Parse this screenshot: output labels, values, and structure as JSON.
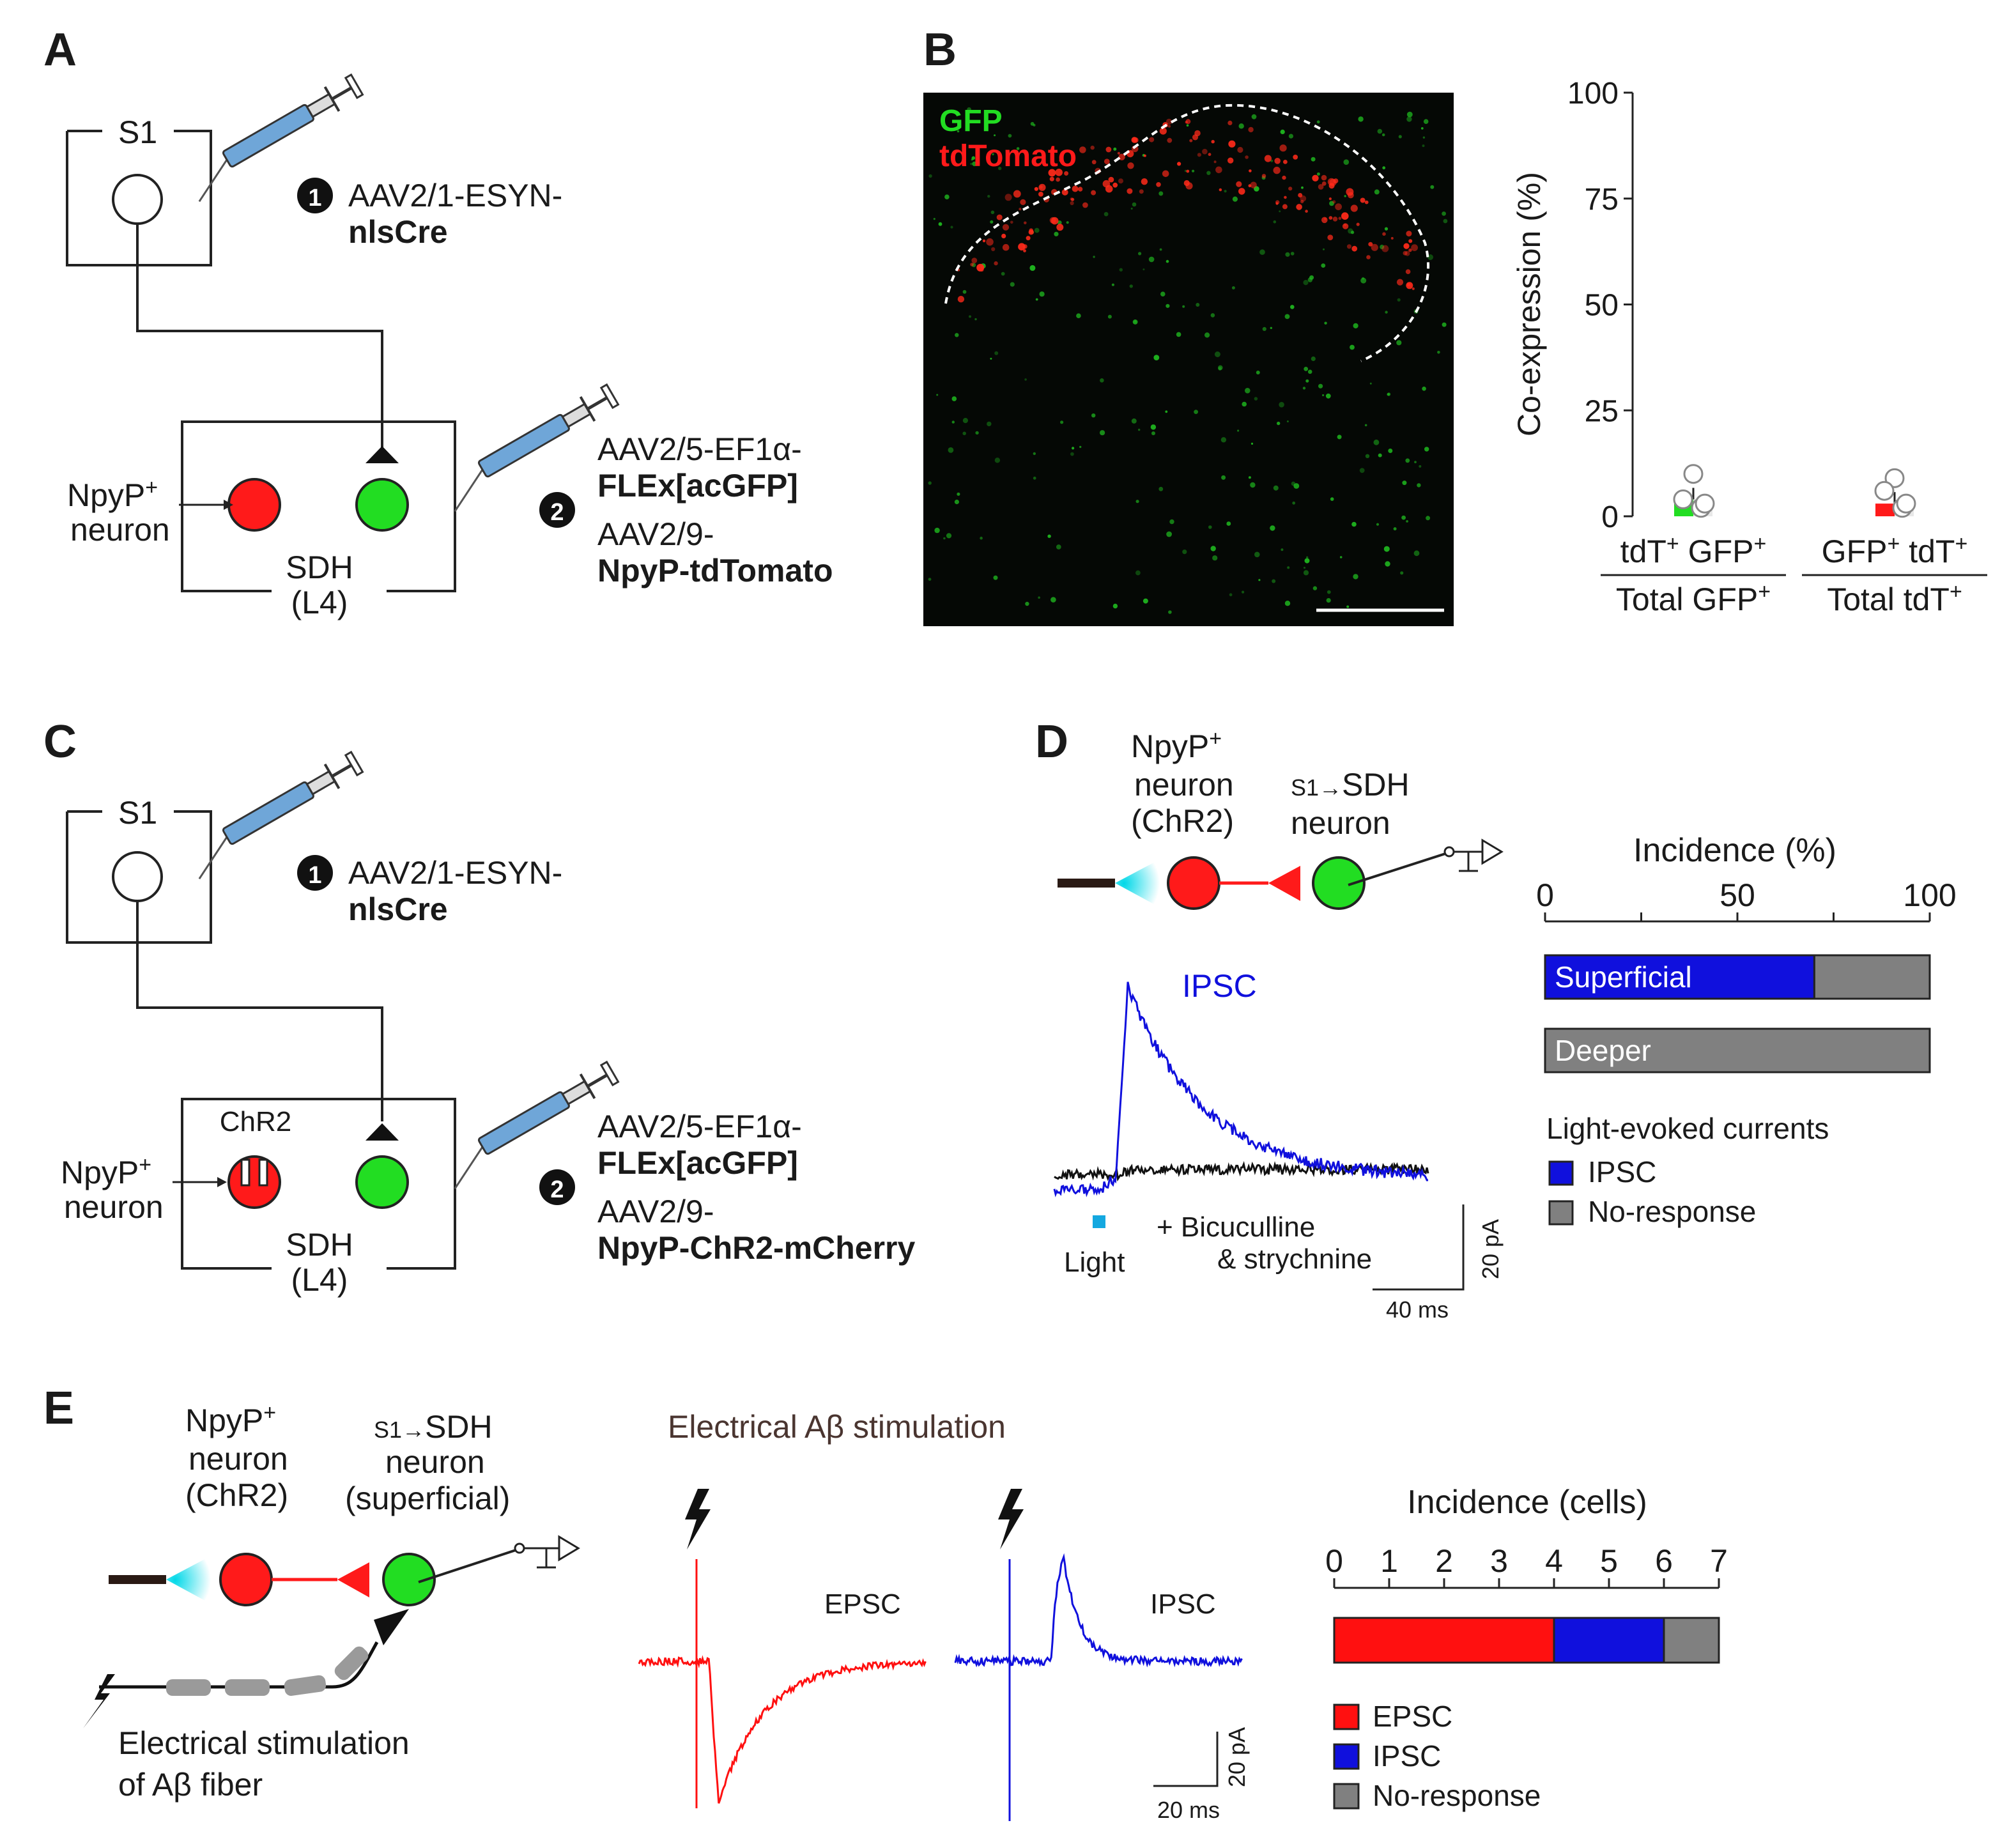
{
  "panels": {
    "A": {
      "letter": "A",
      "s1_label": "S1",
      "step1": "1",
      "step2": "2",
      "virus1_line1": "AAV2/1-ESYN-",
      "virus1_line2": "nlsCre",
      "virus2_line1": "AAV2/5-EF1α-",
      "virus2_line2": "FLEx[acGFP]",
      "virus3_line1": "AAV2/9-",
      "virus3_line2": "NpyP-tdTomato",
      "npyp_label": "NpyP",
      "npyp_sup": "+",
      "neuron_label": "neuron",
      "region_line1": "SDH",
      "region_line2": "(L4)"
    },
    "B": {
      "letter": "B",
      "image_legend_gfp": "GFP",
      "image_legend_tdt": "tdTomato",
      "colors": {
        "gfp": "#22dd22",
        "tdt": "#ff1a1a"
      },
      "chart_data": {
        "type": "scatter",
        "ylabel": "Co-expression (%)",
        "ylim": [
          0,
          100
        ],
        "yticks": [
          "0",
          "25",
          "50",
          "75",
          "100"
        ],
        "categories": [
          {
            "num_a": "tdT",
            "num_sup_a": "+",
            "num_b": " GFP",
            "num_sup_b": "+",
            "den": "Total GFP",
            "den_sup": "+"
          },
          {
            "num_a": "GFP",
            "num_sup_a": "+",
            "num_b": " tdT",
            "num_sup_b": "+",
            "den": "Total tdT",
            "den_sup": "+"
          }
        ],
        "series": [
          {
            "mean": 4,
            "points": [
              10,
              4,
              2,
              3
            ]
          },
          {
            "mean": 3,
            "points": [
              9,
              6,
              2,
              3
            ]
          }
        ]
      }
    },
    "C": {
      "letter": "C",
      "s1_label": "S1",
      "step1": "1",
      "step2": "2",
      "virus1_line1": "AAV2/1-ESYN-",
      "virus1_line2": "nlsCre",
      "virus2_line1": "AAV2/5-EF1α-",
      "virus2_line2": "FLEx[acGFP]",
      "virus3_line1": "AAV2/9-",
      "virus3_line2": "NpyP-ChR2-mCherry",
      "chr2_label": "ChR2",
      "npyp_label": "NpyP",
      "npyp_sup": "+",
      "neuron_label": "neuron",
      "region_line1": "SDH",
      "region_line2": "(L4)"
    },
    "D": {
      "letter": "D",
      "pre_line1": "NpyP",
      "pre_sup": "+",
      "pre_line2": "neuron",
      "pre_line3": "(ChR2)",
      "post_pre": "S1→",
      "post_line1": "SDH",
      "post_line2": "neuron",
      "trace_label": "IPSC",
      "light_label": "Light",
      "drug_line1": "+ Bicuculline",
      "drug_line2": "& strychnine",
      "scale_y": "20 pA",
      "scale_x": "40 ms",
      "chart_data": {
        "type": "bar",
        "title": "Incidence (%)",
        "xlim": [
          0,
          100
        ],
        "xticks": [
          "0",
          "50",
          "100"
        ],
        "categories": [
          "Superficial",
          "Deeper"
        ],
        "series": [
          {
            "name": "IPSC",
            "values": [
              70,
              0
            ],
            "color": "#1010dd"
          },
          {
            "name": "No-response",
            "values": [
              30,
              100
            ],
            "color": "#808080"
          }
        ],
        "legend_title": "Light-evoked currents"
      }
    },
    "E": {
      "letter": "E",
      "pre_line1": "NpyP",
      "pre_sup": "+",
      "pre_line2": "neuron",
      "pre_line3": "(ChR2)",
      "post_pre": "S1→",
      "post_line1": "SDH",
      "post_line2": "neuron",
      "post_line3": "(superficial)",
      "stim_line1": "Electrical stimulation",
      "stim_line2": "of Aβ fiber",
      "traces_title": "Electrical Aβ stimulation",
      "trace1_label": "EPSC",
      "trace2_label": "IPSC",
      "scale_y": "20 pA",
      "scale_x": "20 ms",
      "chart_data": {
        "type": "bar",
        "title": "Incidence (cells)",
        "xlim": [
          0,
          7
        ],
        "xticks": [
          "0",
          "1",
          "2",
          "3",
          "4",
          "5",
          "6",
          "7"
        ],
        "series": [
          {
            "name": "EPSC",
            "values": [
              4
            ],
            "color": "#ff1010"
          },
          {
            "name": "IPSC",
            "values": [
              2
            ],
            "color": "#1010dd"
          },
          {
            "name": "No-response",
            "values": [
              1
            ],
            "color": "#808080"
          }
        ]
      }
    }
  }
}
